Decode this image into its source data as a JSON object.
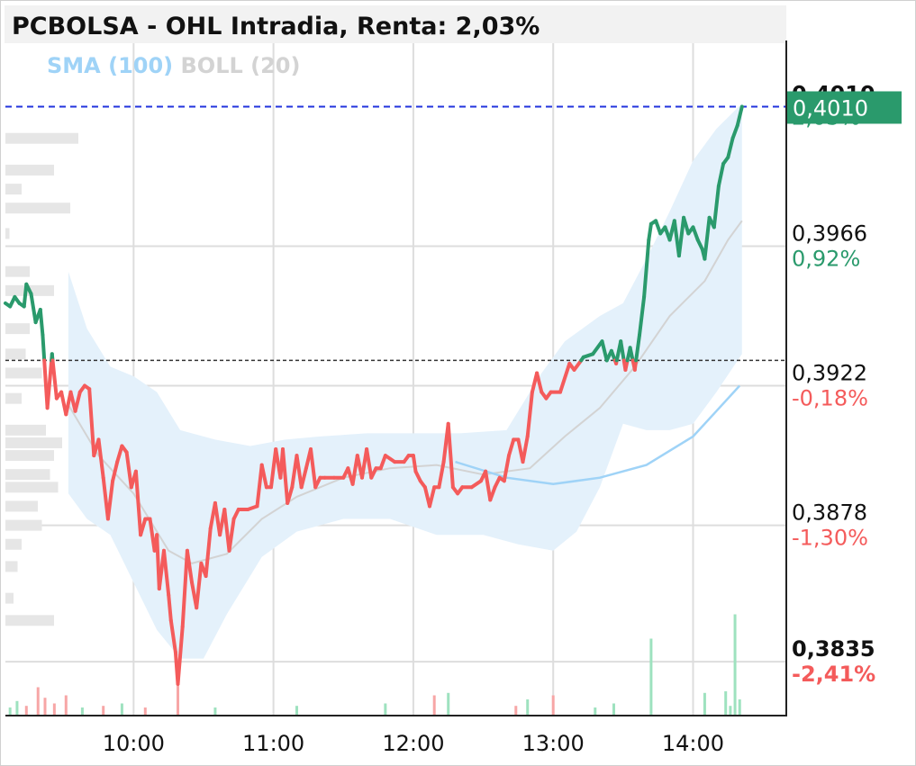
{
  "title": "PCBOLSA - OHL Intradia, Renta: 2,03%",
  "legend": {
    "sma": {
      "label": "SMA (100)",
      "color": "#9fd3f7"
    },
    "boll": {
      "label": "BOLL (20)",
      "color": "#d3d3d3"
    }
  },
  "colors": {
    "up": "#2a9a6c",
    "down": "#f45b5b",
    "band_fill": "#e4f1fb",
    "volume_up": "#9ee2bf",
    "volume_down": "#f7a6a6"
  },
  "chart_data": {
    "type": "line",
    "title": "PCBOLSA - OHL Intradia, Renta: 2,03%",
    "reference_price": 0.393,
    "last_price": 0.401,
    "last_price_label": "0,4010",
    "ylim": [
      0.3818,
      0.403
    ],
    "y_ticks": [
      {
        "value": 0.401,
        "label": "0,4010",
        "pct": "2,03%",
        "bold": true
      },
      {
        "value": 0.3966,
        "label": "0,3966",
        "pct": "0,92%",
        "sign": "up"
      },
      {
        "value": 0.3922,
        "label": "0,3922",
        "pct": "-0,18%",
        "sign": "down"
      },
      {
        "value": 0.3878,
        "label": "0,3878",
        "pct": "-1,30%",
        "sign": "down"
      },
      {
        "value": 0.3835,
        "label": "0,3835",
        "pct": "-2,41%",
        "sign": "down",
        "bold": true
      }
    ],
    "x_ticks": [
      {
        "time": "10:00",
        "label": "10:00"
      },
      {
        "time": "11:00",
        "label": "11:00"
      },
      {
        "time": "12:00",
        "label": "12:00"
      },
      {
        "time": "13:00",
        "label": "13:00"
      },
      {
        "time": "14:00",
        "label": "14:00"
      }
    ],
    "xlim": [
      "09:05",
      "14:40"
    ],
    "grid": true,
    "price_series": [
      [
        "09:05",
        0.3948
      ],
      [
        "09:07",
        0.3947
      ],
      [
        "09:09",
        0.395
      ],
      [
        "09:11",
        0.3948
      ],
      [
        "09:13",
        0.3947
      ],
      [
        "09:14",
        0.3954
      ],
      [
        "09:16",
        0.3951
      ],
      [
        "09:18",
        0.3942
      ],
      [
        "09:20",
        0.3946
      ],
      [
        "09:21",
        0.3938
      ],
      [
        "09:23",
        0.3915
      ],
      [
        "09:25",
        0.3932
      ],
      [
        "09:27",
        0.3918
      ],
      [
        "09:29",
        0.392
      ],
      [
        "09:31",
        0.3913
      ],
      [
        "09:33",
        0.392
      ],
      [
        "09:35",
        0.3914
      ],
      [
        "09:37",
        0.392
      ],
      [
        "09:39",
        0.3922
      ],
      [
        "09:41",
        0.3921
      ],
      [
        "09:43",
        0.39
      ],
      [
        "09:45",
        0.3905
      ],
      [
        "09:47",
        0.3893
      ],
      [
        "09:49",
        0.388
      ],
      [
        "09:51",
        0.3892
      ],
      [
        "09:53",
        0.3898
      ],
      [
        "09:55",
        0.3903
      ],
      [
        "09:57",
        0.3901
      ],
      [
        "09:59",
        0.389
      ],
      [
        "10:01",
        0.3895
      ],
      [
        "10:03",
        0.3875
      ],
      [
        "10:05",
        0.388
      ],
      [
        "10:07",
        0.388
      ],
      [
        "10:09",
        0.387
      ],
      [
        "10:10",
        0.3875
      ],
      [
        "10:11",
        0.3858
      ],
      [
        "10:13",
        0.387
      ],
      [
        "10:15",
        0.3856
      ],
      [
        "10:16",
        0.3848
      ],
      [
        "10:18",
        0.3838
      ],
      [
        "10:19",
        0.3828
      ],
      [
        "10:21",
        0.3846
      ],
      [
        "10:23",
        0.387
      ],
      [
        "10:25",
        0.386
      ],
      [
        "10:27",
        0.3852
      ],
      [
        "10:29",
        0.3866
      ],
      [
        "10:31",
        0.3862
      ],
      [
        "10:33",
        0.3877
      ],
      [
        "10:35",
        0.3885
      ],
      [
        "10:37",
        0.3875
      ],
      [
        "10:39",
        0.3883
      ],
      [
        "10:41",
        0.387
      ],
      [
        "10:43",
        0.388
      ],
      [
        "10:45",
        0.3883
      ],
      [
        "10:49",
        0.3883
      ],
      [
        "10:53",
        0.3884
      ],
      [
        "10:55",
        0.3897
      ],
      [
        "10:57",
        0.389
      ],
      [
        "10:59",
        0.389
      ],
      [
        "11:01",
        0.3902
      ],
      [
        "11:03",
        0.3893
      ],
      [
        "11:04",
        0.3902
      ],
      [
        "11:06",
        0.3885
      ],
      [
        "11:08",
        0.389
      ],
      [
        "11:10",
        0.39
      ],
      [
        "11:12",
        0.389
      ],
      [
        "11:14",
        0.3896
      ],
      [
        "11:16",
        0.3902
      ],
      [
        "11:18",
        0.389
      ],
      [
        "11:20",
        0.3893
      ],
      [
        "11:22",
        0.3893
      ],
      [
        "11:26",
        0.3893
      ],
      [
        "11:30",
        0.3893
      ],
      [
        "11:32",
        0.3896
      ],
      [
        "11:34",
        0.3891
      ],
      [
        "11:36",
        0.39
      ],
      [
        "11:38",
        0.3893
      ],
      [
        "11:40",
        0.3902
      ],
      [
        "11:42",
        0.3893
      ],
      [
        "11:44",
        0.3896
      ],
      [
        "11:46",
        0.3896
      ],
      [
        "11:48",
        0.39
      ],
      [
        "11:52",
        0.3898
      ],
      [
        "11:56",
        0.3898
      ],
      [
        "11:58",
        0.39
      ],
      [
        "12:00",
        0.39
      ],
      [
        "12:01",
        0.3895
      ],
      [
        "12:03",
        0.3892
      ],
      [
        "12:05",
        0.389
      ],
      [
        "12:07",
        0.3884
      ],
      [
        "12:09",
        0.389
      ],
      [
        "12:11",
        0.389
      ],
      [
        "12:13",
        0.3898
      ],
      [
        "12:15",
        0.391
      ],
      [
        "12:17",
        0.389
      ],
      [
        "12:19",
        0.3888
      ],
      [
        "12:21",
        0.389
      ],
      [
        "12:25",
        0.389
      ],
      [
        "12:29",
        0.3892
      ],
      [
        "12:31",
        0.3895
      ],
      [
        "12:33",
        0.3886
      ],
      [
        "12:35",
        0.389
      ],
      [
        "12:37",
        0.3893
      ],
      [
        "12:39",
        0.3892
      ],
      [
        "12:41",
        0.39
      ],
      [
        "12:43",
        0.3905
      ],
      [
        "12:45",
        0.3905
      ],
      [
        "12:47",
        0.3898
      ],
      [
        "12:49",
        0.3906
      ],
      [
        "12:51",
        0.392
      ],
      [
        "12:53",
        0.3926
      ],
      [
        "12:55",
        0.392
      ],
      [
        "12:57",
        0.3918
      ],
      [
        "12:59",
        0.392
      ],
      [
        "13:03",
        0.392
      ],
      [
        "13:07",
        0.3929
      ],
      [
        "13:09",
        0.3927
      ],
      [
        "13:13",
        0.3931
      ],
      [
        "13:17",
        0.3932
      ],
      [
        "13:21",
        0.3936
      ],
      [
        "13:23",
        0.393
      ],
      [
        "13:25",
        0.3933
      ],
      [
        "13:27",
        0.3929
      ],
      [
        "13:29",
        0.3936
      ],
      [
        "13:31",
        0.3927
      ],
      [
        "13:33",
        0.3934
      ],
      [
        "13:35",
        0.3927
      ],
      [
        "13:37",
        0.3938
      ],
      [
        "13:39",
        0.395
      ],
      [
        "13:41",
        0.3968
      ],
      [
        "13:42",
        0.3973
      ],
      [
        "13:44",
        0.3974
      ],
      [
        "13:46",
        0.397
      ],
      [
        "13:48",
        0.3972
      ],
      [
        "13:50",
        0.3968
      ],
      [
        "13:52",
        0.3974
      ],
      [
        "13:54",
        0.3963
      ],
      [
        "13:56",
        0.3975
      ],
      [
        "13:58",
        0.397
      ],
      [
        "14:00",
        0.3972
      ],
      [
        "14:02",
        0.3968
      ],
      [
        "14:04",
        0.3965
      ],
      [
        "14:05",
        0.3962
      ],
      [
        "14:07",
        0.3975
      ],
      [
        "14:09",
        0.3972
      ],
      [
        "14:11",
        0.3985
      ],
      [
        "14:13",
        0.3992
      ],
      [
        "14:15",
        0.3994
      ],
      [
        "14:17",
        0.4
      ],
      [
        "14:19",
        0.4004
      ],
      [
        "14:21",
        0.401
      ]
    ],
    "sma_series": [
      [
        "12:18",
        0.3898
      ],
      [
        "12:40",
        0.3893
      ],
      [
        "13:00",
        0.3891
      ],
      [
        "13:20",
        0.3893
      ],
      [
        "13:40",
        0.3897
      ],
      [
        "14:00",
        0.3906
      ],
      [
        "14:10",
        0.3914
      ],
      [
        "14:20",
        0.3922
      ]
    ],
    "boll_middle": [
      [
        "09:32",
        0.3916
      ],
      [
        "09:45",
        0.39
      ],
      [
        "10:00",
        0.3888
      ],
      [
        "10:15",
        0.387
      ],
      [
        "10:25",
        0.3866
      ],
      [
        "10:40",
        0.3869
      ],
      [
        "10:55",
        0.388
      ],
      [
        "11:10",
        0.3887
      ],
      [
        "11:30",
        0.3893
      ],
      [
        "11:50",
        0.3896
      ],
      [
        "12:10",
        0.3897
      ],
      [
        "12:30",
        0.3894
      ],
      [
        "12:50",
        0.3896
      ],
      [
        "13:05",
        0.3906
      ],
      [
        "13:20",
        0.3915
      ],
      [
        "13:35",
        0.3928
      ],
      [
        "13:50",
        0.3944
      ],
      [
        "14:05",
        0.3955
      ],
      [
        "14:15",
        0.3968
      ],
      [
        "14:21",
        0.3974
      ]
    ],
    "boll_upper": [
      [
        "09:32",
        0.3958
      ],
      [
        "09:40",
        0.394
      ],
      [
        "09:50",
        0.3928
      ],
      [
        "10:00",
        0.3925
      ],
      [
        "10:10",
        0.392
      ],
      [
        "10:20",
        0.3908
      ],
      [
        "10:35",
        0.3905
      ],
      [
        "10:50",
        0.3903
      ],
      [
        "11:05",
        0.3905
      ],
      [
        "11:20",
        0.3906
      ],
      [
        "11:40",
        0.3907
      ],
      [
        "12:00",
        0.3907
      ],
      [
        "12:20",
        0.3907
      ],
      [
        "12:40",
        0.3908
      ],
      [
        "12:55",
        0.3926
      ],
      [
        "13:05",
        0.3936
      ],
      [
        "13:20",
        0.3944
      ],
      [
        "13:30",
        0.3948
      ],
      [
        "13:40",
        0.3962
      ],
      [
        "13:50",
        0.3977
      ],
      [
        "14:00",
        0.3993
      ],
      [
        "14:10",
        0.4003
      ],
      [
        "14:21",
        0.4011
      ]
    ],
    "boll_lower": [
      [
        "09:32",
        0.3888
      ],
      [
        "09:40",
        0.388
      ],
      [
        "09:50",
        0.3875
      ],
      [
        "10:00",
        0.386
      ],
      [
        "10:10",
        0.3845
      ],
      [
        "10:20",
        0.3836
      ],
      [
        "10:30",
        0.3836
      ],
      [
        "10:40",
        0.385
      ],
      [
        "10:55",
        0.3868
      ],
      [
        "11:10",
        0.3876
      ],
      [
        "11:30",
        0.388
      ],
      [
        "11:50",
        0.388
      ],
      [
        "12:10",
        0.3875
      ],
      [
        "12:30",
        0.3875
      ],
      [
        "12:45",
        0.3872
      ],
      [
        "13:00",
        0.387
      ],
      [
        "13:10",
        0.3876
      ],
      [
        "13:20",
        0.389
      ],
      [
        "13:30",
        0.391
      ],
      [
        "13:40",
        0.3908
      ],
      [
        "13:50",
        0.3908
      ],
      [
        "14:00",
        0.391
      ],
      [
        "14:10",
        0.392
      ],
      [
        "14:21",
        0.3932
      ]
    ],
    "volume_bars": [
      [
        "09:07",
        0.1,
        "up"
      ],
      [
        "09:10",
        0.18,
        "up"
      ],
      [
        "09:14",
        0.12,
        "down"
      ],
      [
        "09:19",
        0.35,
        "down"
      ],
      [
        "09:22",
        0.22,
        "down"
      ],
      [
        "09:26",
        0.15,
        "down"
      ],
      [
        "09:31",
        0.25,
        "down"
      ],
      [
        "09:38",
        0.1,
        "up"
      ],
      [
        "09:47",
        0.12,
        "down"
      ],
      [
        "09:55",
        0.15,
        "up"
      ],
      [
        "10:05",
        0.1,
        "down"
      ],
      [
        "10:19",
        0.55,
        "down"
      ],
      [
        "10:35",
        0.1,
        "up"
      ],
      [
        "11:10",
        0.12,
        "up"
      ],
      [
        "11:48",
        0.15,
        "up"
      ],
      [
        "12:09",
        0.25,
        "down"
      ],
      [
        "12:15",
        0.28,
        "up"
      ],
      [
        "12:44",
        0.12,
        "down"
      ],
      [
        "12:49",
        0.2,
        "up"
      ],
      [
        "13:00",
        0.25,
        "down"
      ],
      [
        "13:18",
        0.1,
        "up"
      ],
      [
        "13:26",
        0.15,
        "up"
      ],
      [
        "13:42",
        0.95,
        "up"
      ],
      [
        "14:05",
        0.28,
        "up"
      ],
      [
        "14:14",
        0.3,
        "up"
      ],
      [
        "14:16",
        0.12,
        "up"
      ],
      [
        "14:18",
        1.25,
        "up"
      ],
      [
        "14:20",
        0.2,
        "up"
      ]
    ],
    "volume_profile": [
      [
        0.4,
        0.9
      ],
      [
        0.399,
        0.6
      ],
      [
        0.3984,
        0.2
      ],
      [
        0.3978,
        0.8
      ],
      [
        0.397,
        0.05
      ],
      [
        0.3958,
        0.3
      ],
      [
        0.3952,
        0.6
      ],
      [
        0.394,
        0.3
      ],
      [
        0.3932,
        0.25
      ],
      [
        0.3926,
        0.45
      ],
      [
        0.3918,
        0.2
      ],
      [
        0.3908,
        0.5
      ],
      [
        0.3904,
        0.7
      ],
      [
        0.39,
        0.6
      ],
      [
        0.3894,
        0.55
      ],
      [
        0.389,
        0.65
      ],
      [
        0.3884,
        0.4
      ],
      [
        0.3878,
        0.45
      ],
      [
        0.3872,
        0.2
      ],
      [
        0.3865,
        0.15
      ],
      [
        0.3855,
        0.1
      ],
      [
        0.3848,
        0.6
      ]
    ]
  }
}
